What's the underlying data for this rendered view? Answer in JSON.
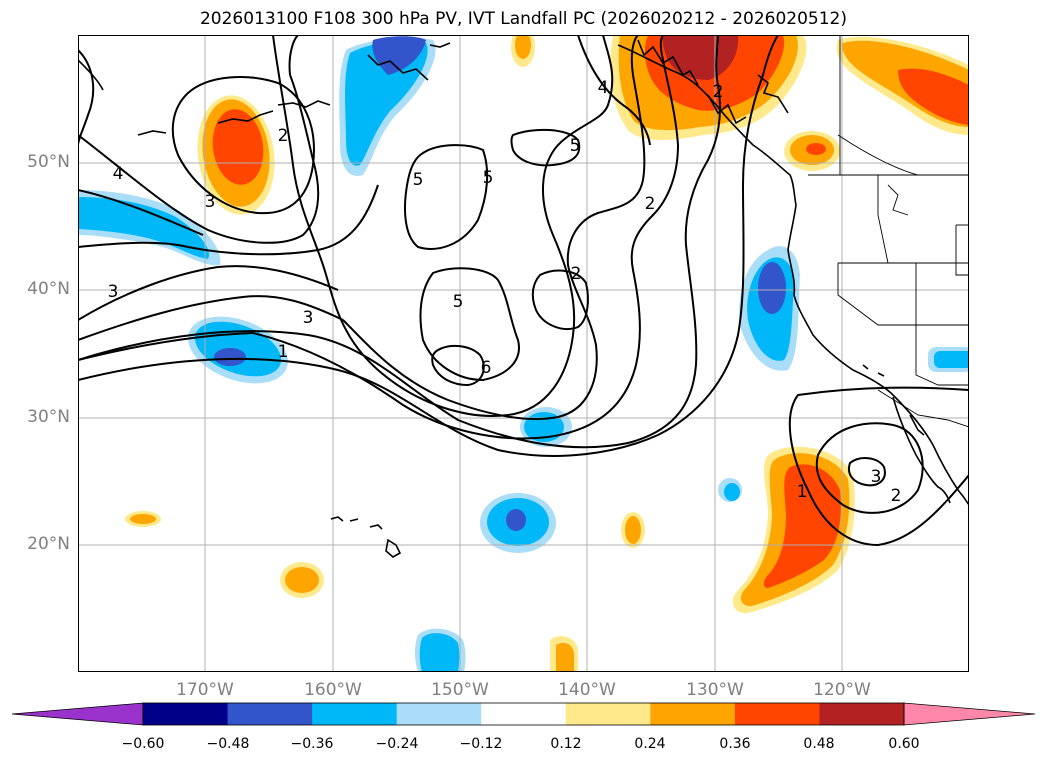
{
  "title": "2026013100 F108 300 hPa PV, IVT Landfall PC (2026020212 - 2026020512)",
  "lat_labels": [
    "50°N",
    "40°N",
    "30°N",
    "20°N"
  ],
  "lon_labels": [
    "170°W",
    "160°W",
    "150°W",
    "140°W",
    "130°W",
    "120°W"
  ],
  "contour_labels": [
    "4",
    "3",
    "2",
    "5",
    "5",
    "5",
    "2",
    "3",
    "3",
    "1",
    "5",
    "6",
    "2",
    "4",
    "2",
    "1",
    "2",
    "3"
  ],
  "colorbar": {
    "ticks": [
      "−0.60",
      "−0.48",
      "−0.36",
      "−0.24",
      "−0.12",
      "0.12",
      "0.24",
      "0.36",
      "0.48",
      "0.60"
    ],
    "colors": [
      "#9933CC",
      "#000088",
      "#3355CC",
      "#00B8F8",
      "#AADDF8",
      "#FFFFFF",
      "#FFE98A",
      "#FFA500",
      "#FF4500",
      "#B22222",
      "#FF88AA"
    ]
  },
  "colors": {
    "gridline": "#b0b0b0",
    "land_line": "#000000",
    "contour": "#000000"
  }
}
